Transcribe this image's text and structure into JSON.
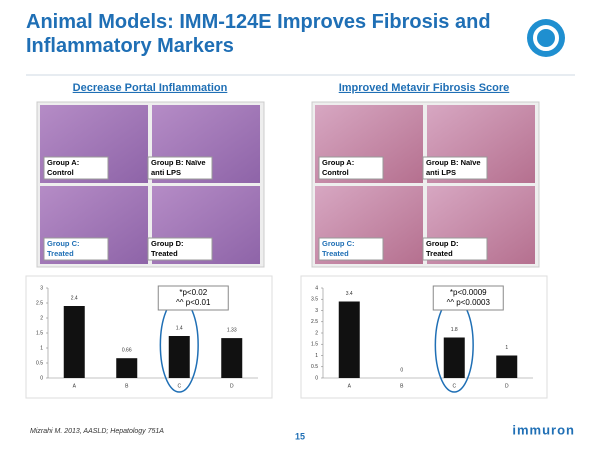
{
  "title": "Animal Models: IMM-124E Improves Fibrosis and Inflammatory Markers",
  "panels": [
    {
      "heading": "Decrease Portal Inflammation",
      "labels": [
        [
          "Group A:",
          "Control"
        ],
        [
          "Group B: Naïve",
          "anti LPS"
        ],
        [
          "Group C:",
          "Treated"
        ],
        [
          "Group D:",
          "Treated"
        ]
      ]
    },
    {
      "heading": "Improved Metavir Fibrosis Score",
      "labels": [
        [
          "Group A:",
          "Control"
        ],
        [
          "Group B: Naïve",
          "anti LPS"
        ],
        [
          "Group C:",
          "Treated"
        ],
        [
          "Group D:",
          "Treated"
        ]
      ]
    }
  ],
  "chart_data": [
    {
      "type": "bar",
      "categories": [
        "A",
        "B",
        "C",
        "D"
      ],
      "values": [
        2.4,
        0.66,
        1.4,
        1.33
      ],
      "color": "#111111",
      "ylim": [
        0,
        3
      ],
      "yticks": [
        0,
        0.5,
        1,
        1.5,
        2,
        2.5,
        3
      ],
      "annotations": [
        "*p<0.02",
        "^^ p<0.01"
      ]
    },
    {
      "type": "bar",
      "categories": [
        "A",
        "B",
        "C",
        "D"
      ],
      "values": [
        3.4,
        0,
        1.8,
        1
      ],
      "color": "#111111",
      "ylim": [
        0,
        4
      ],
      "yticks": [
        0,
        0.5,
        1,
        1.5,
        2,
        2.5,
        3,
        3.5,
        4
      ],
      "annotations": [
        "*p<0.0009",
        "^^ p<0.0003"
      ]
    }
  ],
  "citation": "Mizrahi M. 2013, AASLD; Hepatology 751A",
  "page_number": "15",
  "logo": "immuron"
}
